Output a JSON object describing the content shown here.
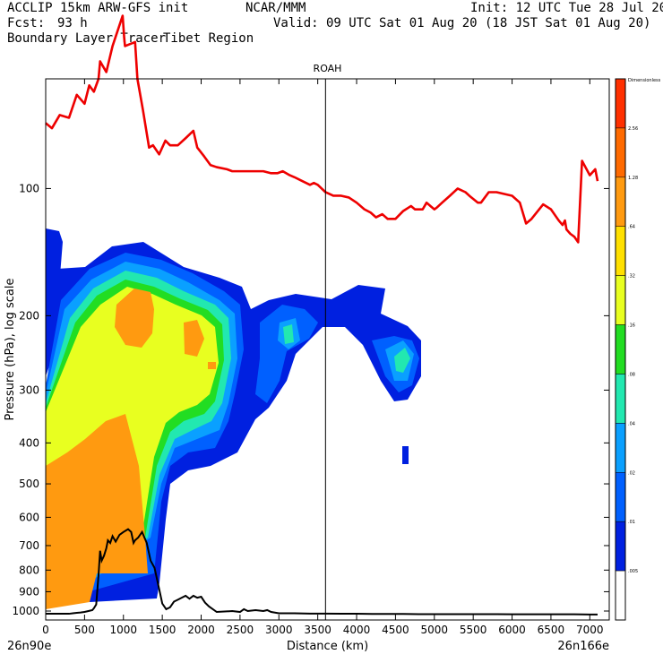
{
  "header": {
    "model": "ACCLIP 15km ARW-GFS init",
    "center": "NCAR/MMM",
    "init": "Init: 12 UTC Tue 28 Jul 20",
    "fcst_label": "Fcst:",
    "fcst_value": "93 h",
    "valid": "Valid: 09 UTC Sat 01 Aug 20 (18 JST Sat 01 Aug 20)",
    "product": "Boundary Layer Tracer",
    "region": "Tibet Region"
  },
  "chart_data": {
    "type": "cross-section",
    "title": "ROAH",
    "xlabel": "Distance (km)",
    "ylabel": "Pressure (hPa), log scale",
    "x_start_label": "26n90e",
    "x_end_label": "26n166e",
    "xlim": [
      0,
      7250
    ],
    "ylim": [
      1050,
      55
    ],
    "x_ticks": [
      0,
      500,
      1000,
      1500,
      2000,
      2500,
      3000,
      3500,
      4000,
      4500,
      5000,
      5500,
      6000,
      6500,
      7000
    ],
    "y_ticks": [
      100,
      200,
      300,
      400,
      500,
      600,
      700,
      800,
      900,
      1000
    ],
    "y_scale": "log",
    "marker_line": {
      "x": 3600,
      "label": "ROAH"
    },
    "colorbar": {
      "levels": [
        "Dimensionless",
        "2.56",
        "1.28",
        ".64",
        ".32",
        ".16",
        ".08",
        ".04",
        ".02",
        ".01",
        ".005"
      ],
      "colors": [
        "#ff3000",
        "#ff6a00",
        "#ff9a10",
        "#ffe000",
        "#e8ff20",
        "#22dd22",
        "#22e8b0",
        "#0aa0ff",
        "#0060ff",
        "#0020e0",
        "#ffffff"
      ]
    },
    "tropopause_series": {
      "name": "tropopause",
      "color": "#ee0000",
      "x": [
        0,
        80,
        180,
        300,
        400,
        500,
        560,
        620,
        680,
        700,
        780,
        860,
        990,
        1010,
        1020,
        1150,
        1180,
        1250,
        1330,
        1380,
        1460,
        1540,
        1600,
        1700,
        1800,
        1900,
        1950,
        2040,
        2120,
        2200,
        2330,
        2400,
        2540,
        2600,
        2700,
        2800,
        2900,
        2980,
        3050,
        3140,
        3200,
        3300,
        3350,
        3400,
        3450,
        3500,
        3600,
        3700,
        3800,
        3900,
        4000,
        4100,
        4180,
        4250,
        4330,
        4400,
        4500,
        4600,
        4700,
        4750,
        4850,
        4900,
        4950,
        5000,
        5030,
        5100,
        5200,
        5300,
        5400,
        5450,
        5560,
        5600,
        5700,
        5800,
        6000,
        6100,
        6180,
        6250,
        6400,
        6500,
        6600,
        6650,
        6680,
        6700,
        6750,
        6800,
        6850,
        6900,
        7000,
        7070,
        7100
      ],
      "p": [
        70,
        72,
        67,
        68,
        60,
        63,
        57,
        59,
        55,
        50,
        53,
        46,
        39,
        44,
        46,
        45,
        55,
        65,
        80,
        79,
        83,
        77,
        79,
        79,
        76,
        73,
        80,
        84,
        88,
        89,
        90,
        91,
        91,
        91,
        91,
        91,
        92,
        92,
        91,
        93,
        94,
        96,
        97,
        98,
        97,
        98,
        102,
        104,
        104,
        105,
        108,
        112,
        114,
        117,
        115,
        118,
        118,
        113,
        110,
        112,
        112,
        108,
        110,
        112,
        111,
        108,
        104,
        100,
        102,
        104,
        108,
        108,
        102,
        102,
        104,
        108,
        121,
        118,
        109,
        112,
        119,
        122,
        119,
        125,
        128,
        130,
        134,
        86,
        93,
        90,
        96
      ]
    },
    "terrain_series": {
      "name": "terrain",
      "color": "#000000",
      "x": [
        0,
        50,
        100,
        150,
        200,
        250,
        300,
        350,
        400,
        450,
        500,
        550,
        600,
        620,
        650,
        680,
        700,
        720,
        750,
        780,
        800,
        830,
        860,
        900,
        950,
        1000,
        1060,
        1100,
        1130,
        1150,
        1190,
        1240,
        1300,
        1350,
        1400,
        1450,
        1500,
        1550,
        1600,
        1650,
        1700,
        1750,
        1800,
        1850,
        1900,
        1950,
        2000,
        2050,
        2100,
        2200,
        2400,
        2500,
        2550,
        2600,
        2700,
        2800,
        2850,
        2900,
        3000,
        3200,
        3400,
        3600,
        3800,
        4000,
        4200,
        4400,
        4600,
        4800,
        5000,
        5200,
        5400,
        5600,
        5800,
        6000,
        6200,
        6400,
        6600,
        6800,
        7000,
        7100
      ],
      "p": [
        1015,
        1015,
        1015,
        1015,
        1015,
        1015,
        1015,
        1012,
        1010,
        1008,
        1005,
        1000,
        995,
        985,
        965,
        820,
        720,
        760,
        740,
        710,
        680,
        690,
        665,
        685,
        660,
        650,
        640,
        650,
        690,
        680,
        670,
        650,
        690,
        760,
        790,
        870,
        960,
        990,
        980,
        950,
        940,
        930,
        920,
        935,
        920,
        930,
        925,
        955,
        975,
        1005,
        1000,
        1005,
        990,
        1000,
        995,
        1000,
        995,
        1005,
        1012,
        1012,
        1014,
        1014,
        1015,
        1015,
        1016,
        1016,
        1016,
        1017,
        1017,
        1017,
        1017,
        1017,
        1017,
        1018,
        1018,
        1018,
        1018,
        1018,
        1019,
        1019
      ]
    }
  }
}
